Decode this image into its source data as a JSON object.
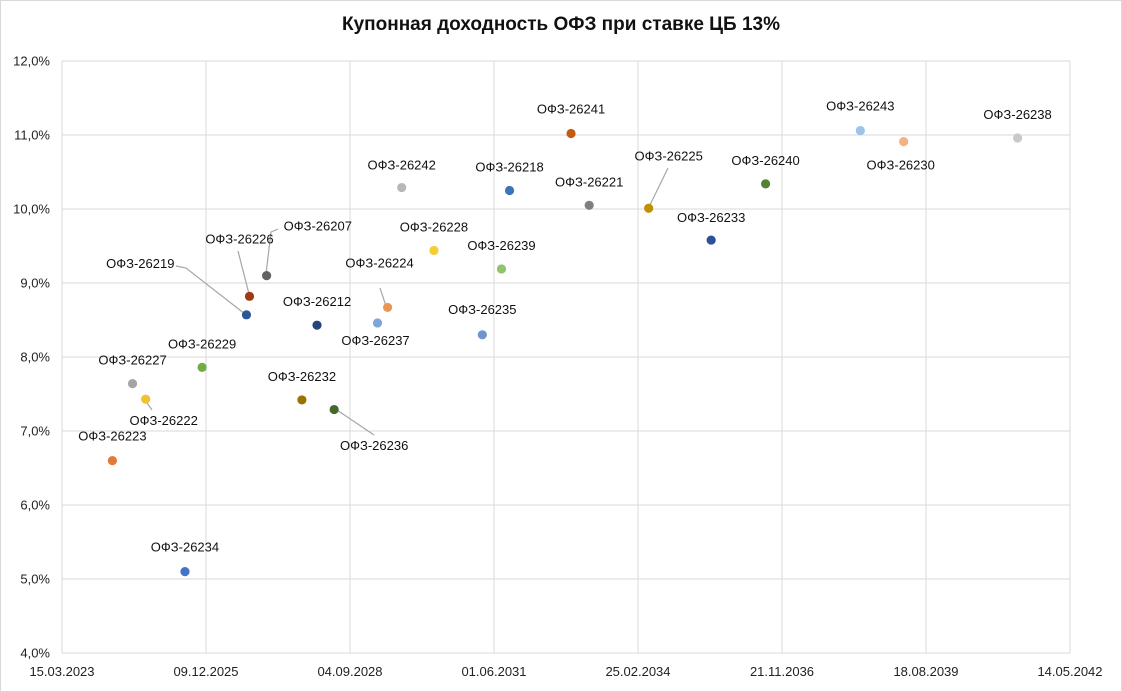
{
  "chart_data": {
    "type": "scatter",
    "title": "Купонная доходность ОФЗ при ставке ЦБ 13%",
    "xlabel": "",
    "ylabel": "",
    "x_tick_labels": [
      "15.03.2023",
      "09.12.2025",
      "04.09.2028",
      "01.06.2031",
      "25.02.2034",
      "21.11.2036",
      "18.08.2039",
      "14.05.2042"
    ],
    "y_tick_labels": [
      "4,0%",
      "5,0%",
      "6,0%",
      "7,0%",
      "8,0%",
      "9,0%",
      "10,0%",
      "11,0%",
      "12,0%"
    ],
    "xlim": [
      "2023-03-15",
      "2042-05-14"
    ],
    "ylim": [
      4.0,
      12.0
    ],
    "y_unit": "%",
    "grid": true,
    "legend": "none",
    "points": [
      {
        "label": "ОФЗ-26223",
        "x": "2024-02-28",
        "y": 6.6,
        "color": "#e07b39"
      },
      {
        "label": "ОФЗ-26227",
        "x": "2024-07-17",
        "y": 7.64,
        "color": "#a5a5a5"
      },
      {
        "label": "ОФЗ-26222",
        "x": "2024-10-16",
        "y": 7.43,
        "color": "#f2c12e"
      },
      {
        "label": "ОФЗ-26234",
        "x": "2025-07-16",
        "y": 5.1,
        "color": "#4472c4"
      },
      {
        "label": "ОФЗ-26229",
        "x": "2025-11-12",
        "y": 7.86,
        "color": "#70ad47"
      },
      {
        "label": "ОФЗ-26219",
        "x": "2026-09-16",
        "y": 8.57,
        "color": "#2e5597"
      },
      {
        "label": "ОФЗ-26226",
        "x": "2026-10-07",
        "y": 8.82,
        "color": "#9e3b12"
      },
      {
        "label": "ОФЗ-26207",
        "x": "2027-02-03",
        "y": 9.1,
        "color": "#636363"
      },
      {
        "label": "ОФЗ-26232",
        "x": "2027-10-06",
        "y": 7.42,
        "color": "#997300"
      },
      {
        "label": "ОФЗ-26212",
        "x": "2028-01-19",
        "y": 8.43,
        "color": "#264478"
      },
      {
        "label": "ОФЗ-26236",
        "x": "2028-05-17",
        "y": 7.29,
        "color": "#43682b"
      },
      {
        "label": "ОФЗ-26237",
        "x": "2029-03-14",
        "y": 8.46,
        "color": "#7ea6d9"
      },
      {
        "label": "ОФЗ-26224",
        "x": "2029-05-23",
        "y": 8.67,
        "color": "#eb9457"
      },
      {
        "label": "ОФЗ-26242",
        "x": "2029-08-29",
        "y": 10.29,
        "color": "#b7b7b7"
      },
      {
        "label": "ОФЗ-26228",
        "x": "2030-04-10",
        "y": 9.44,
        "color": "#f5cd35"
      },
      {
        "label": "ОФЗ-26235",
        "x": "2031-03-12",
        "y": 8.3,
        "color": "#6f95cc"
      },
      {
        "label": "ОФЗ-26239",
        "x": "2031-07-23",
        "y": 9.19,
        "color": "#8fc46a"
      },
      {
        "label": "ОФЗ-26218",
        "x": "2031-09-17",
        "y": 10.25,
        "color": "#3a75b8"
      },
      {
        "label": "ОФЗ-26241",
        "x": "2032-11-17",
        "y": 11.02,
        "color": "#c55a11"
      },
      {
        "label": "ОФЗ-26221",
        "x": "2033-03-23",
        "y": 10.05,
        "color": "#7f7f7f"
      },
      {
        "label": "ОФЗ-26225",
        "x": "2034-05-10",
        "y": 10.01,
        "color": "#bf9000"
      },
      {
        "label": "ОФЗ-26233",
        "x": "2035-07-18",
        "y": 9.58,
        "color": "#2f4f9a"
      },
      {
        "label": "ОФЗ-26240",
        "x": "2036-07-30",
        "y": 10.34,
        "color": "#548235"
      },
      {
        "label": "ОФЗ-26243",
        "x": "2038-05-19",
        "y": 11.06,
        "color": "#9dc3e6"
      },
      {
        "label": "ОФЗ-26230",
        "x": "2039-03-16",
        "y": 10.91,
        "color": "#f4b183"
      },
      {
        "label": "ОФЗ-26238",
        "x": "2041-05-15",
        "y": 10.96,
        "color": "#c9c9c9"
      }
    ]
  }
}
